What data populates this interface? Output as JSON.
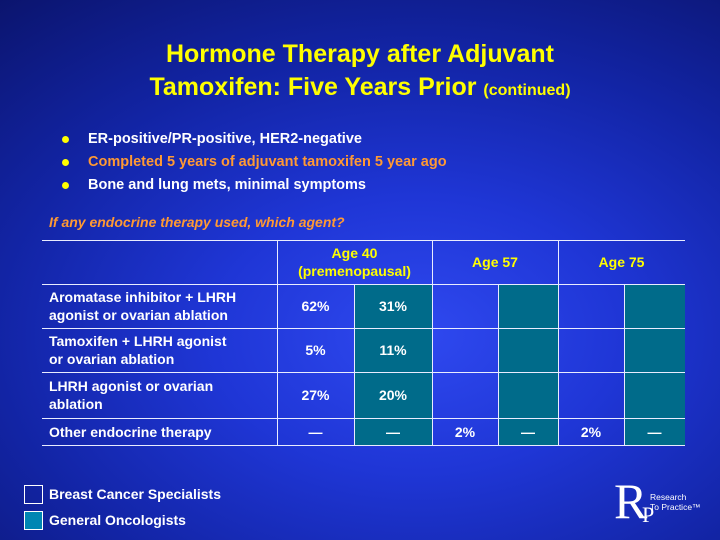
{
  "title": {
    "line1": "Hormone Therapy after Adjuvant",
    "line2": "Tamoxifen: Five Years Prior",
    "suffix": "(continued)"
  },
  "bullets": [
    "ER-positive/PR-positive, HER2-negative",
    "Completed 5 years of adjuvant tamoxifen 5 year ago",
    "Bone and lung mets, minimal symptoms"
  ],
  "question": "If any endocrine therapy used, which agent?",
  "table": {
    "headers": {
      "age40_line1": "Age 40",
      "age40_line2": "(premenopausal)",
      "age57": "Age 57",
      "age75": "Age 75"
    },
    "rows": [
      {
        "label_line1": "Aromatase inhibitor + LHRH",
        "label_line2": "agonist or ovarian ablation",
        "values": [
          "62%",
          "31%",
          "",
          "",
          "",
          ""
        ]
      },
      {
        "label_line1": "Tamoxifen + LHRH agonist",
        "label_line2": "or ovarian ablation",
        "values": [
          "5%",
          "11%",
          "",
          "",
          "",
          ""
        ]
      },
      {
        "label_line1": "LHRH agonist or ovarian",
        "label_line2": "ablation",
        "values": [
          "27%",
          "20%",
          "",
          "",
          "",
          ""
        ]
      },
      {
        "label_line1": "Other endocrine therapy",
        "label_line2": "",
        "values": [
          "—",
          "—",
          "2%",
          "—",
          "2%",
          "—"
        ]
      }
    ]
  },
  "legend": [
    {
      "label": "Breast Cancer Specialists",
      "color": "#1a2fd0"
    },
    {
      "label": "General Oncologists",
      "color": "#0086b3"
    }
  ],
  "logo": {
    "letter_r": "R",
    "letter_p": "P",
    "line1": "Research",
    "line2": "To Practice™"
  },
  "colors": {
    "title": "#ffff00",
    "highlight": "#ff9933",
    "teal_column": "#006b8a"
  }
}
